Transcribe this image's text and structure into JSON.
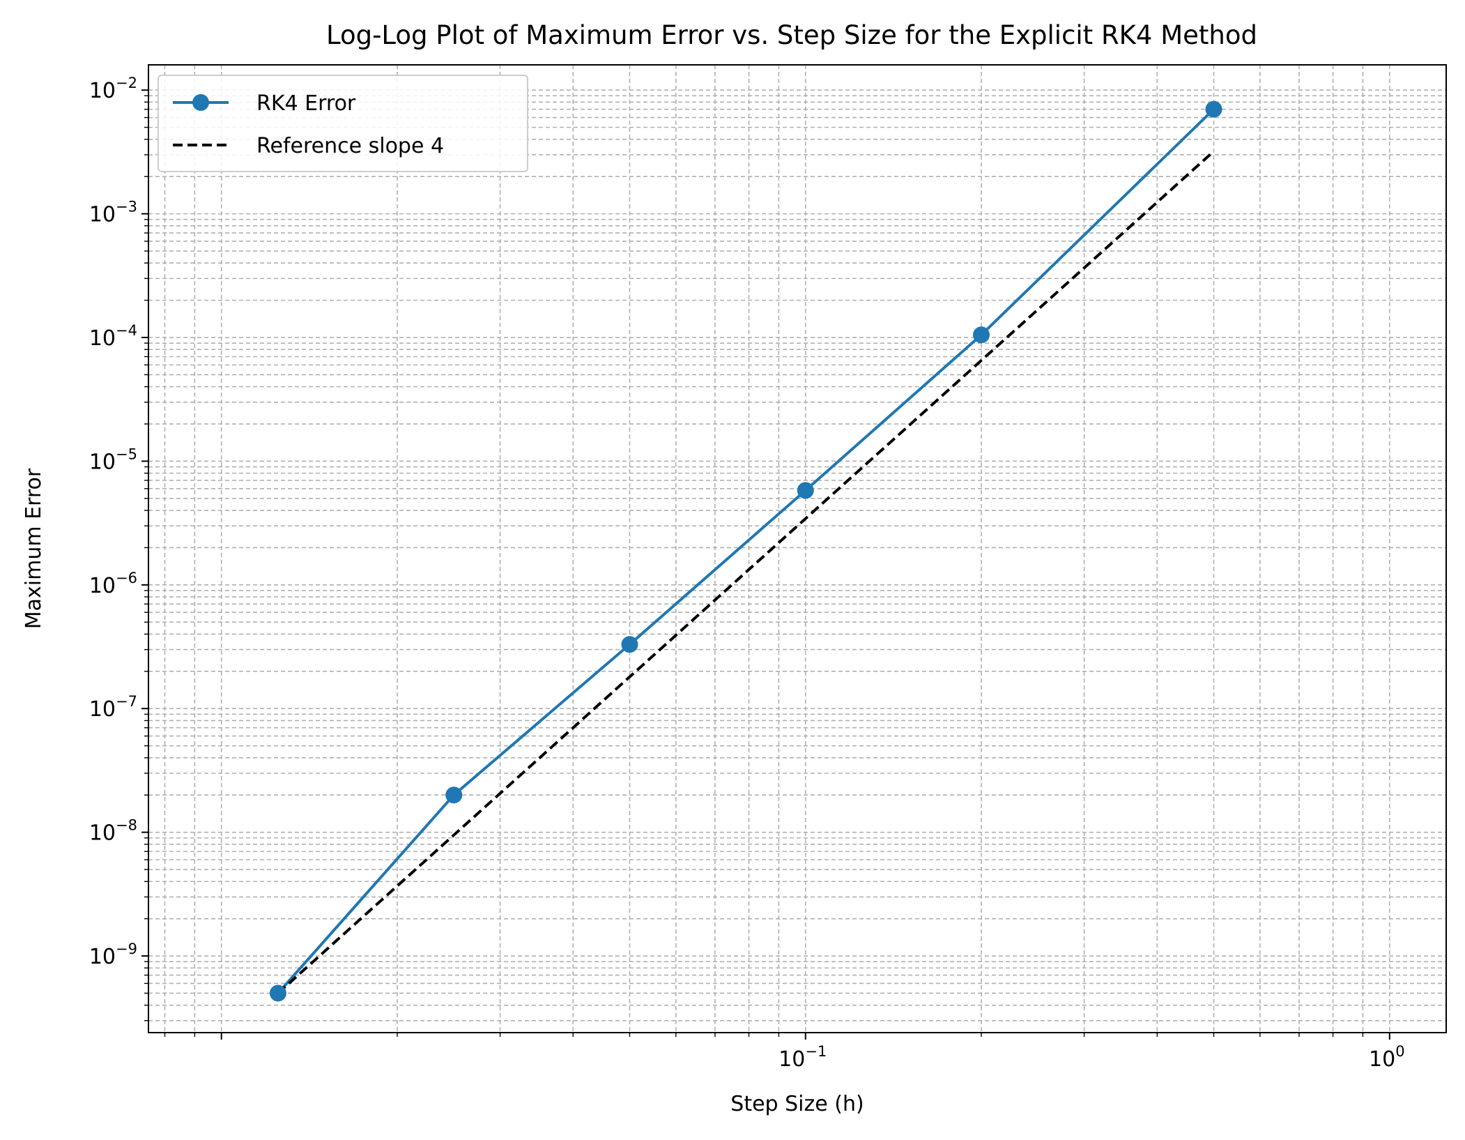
{
  "chart_data": {
    "type": "line",
    "title": "Log-Log Plot of Maximum Error vs. Step Size for the Explicit RK4 Method",
    "xlabel": "Step Size (h)",
    "ylabel": "Maximum Error",
    "xscale": "log",
    "yscale": "log",
    "xlim": [
      0.0075,
      1.25
    ],
    "ylim": [
      2.4e-10,
      0.016
    ],
    "grid": "both (major and minor), dashed",
    "legend_position": "top-left",
    "x_ticks": [
      {
        "value": 0.1,
        "base": "10",
        "exp": "−1"
      },
      {
        "value": 1,
        "base": "10",
        "exp": "0"
      }
    ],
    "y_ticks": [
      {
        "value": 1e-09,
        "base": "10",
        "exp": "−9"
      },
      {
        "value": 1e-08,
        "base": "10",
        "exp": "−8"
      },
      {
        "value": 1e-07,
        "base": "10",
        "exp": "−7"
      },
      {
        "value": 1e-06,
        "base": "10",
        "exp": "−6"
      },
      {
        "value": 1e-05,
        "base": "10",
        "exp": "−5"
      },
      {
        "value": 0.0001,
        "base": "10",
        "exp": "−4"
      },
      {
        "value": 0.001,
        "base": "10",
        "exp": "−3"
      },
      {
        "value": 0.01,
        "base": "10",
        "exp": "−2"
      }
    ],
    "series": [
      {
        "name": "RK4 Error",
        "color": "#1f77b4",
        "line_style": "solid",
        "marker": "circle",
        "x": [
          0.0125,
          0.025,
          0.05,
          0.1,
          0.2,
          0.5
        ],
        "y": [
          5e-10,
          2e-08,
          3.3e-07,
          5.8e-06,
          0.000105,
          0.007
        ]
      },
      {
        "name": "Reference slope 4",
        "color": "#000000",
        "line_style": "dashed",
        "marker": "none",
        "x": [
          0.0125,
          0.5
        ],
        "y": [
          5e-10,
          0.0032
        ]
      }
    ]
  }
}
